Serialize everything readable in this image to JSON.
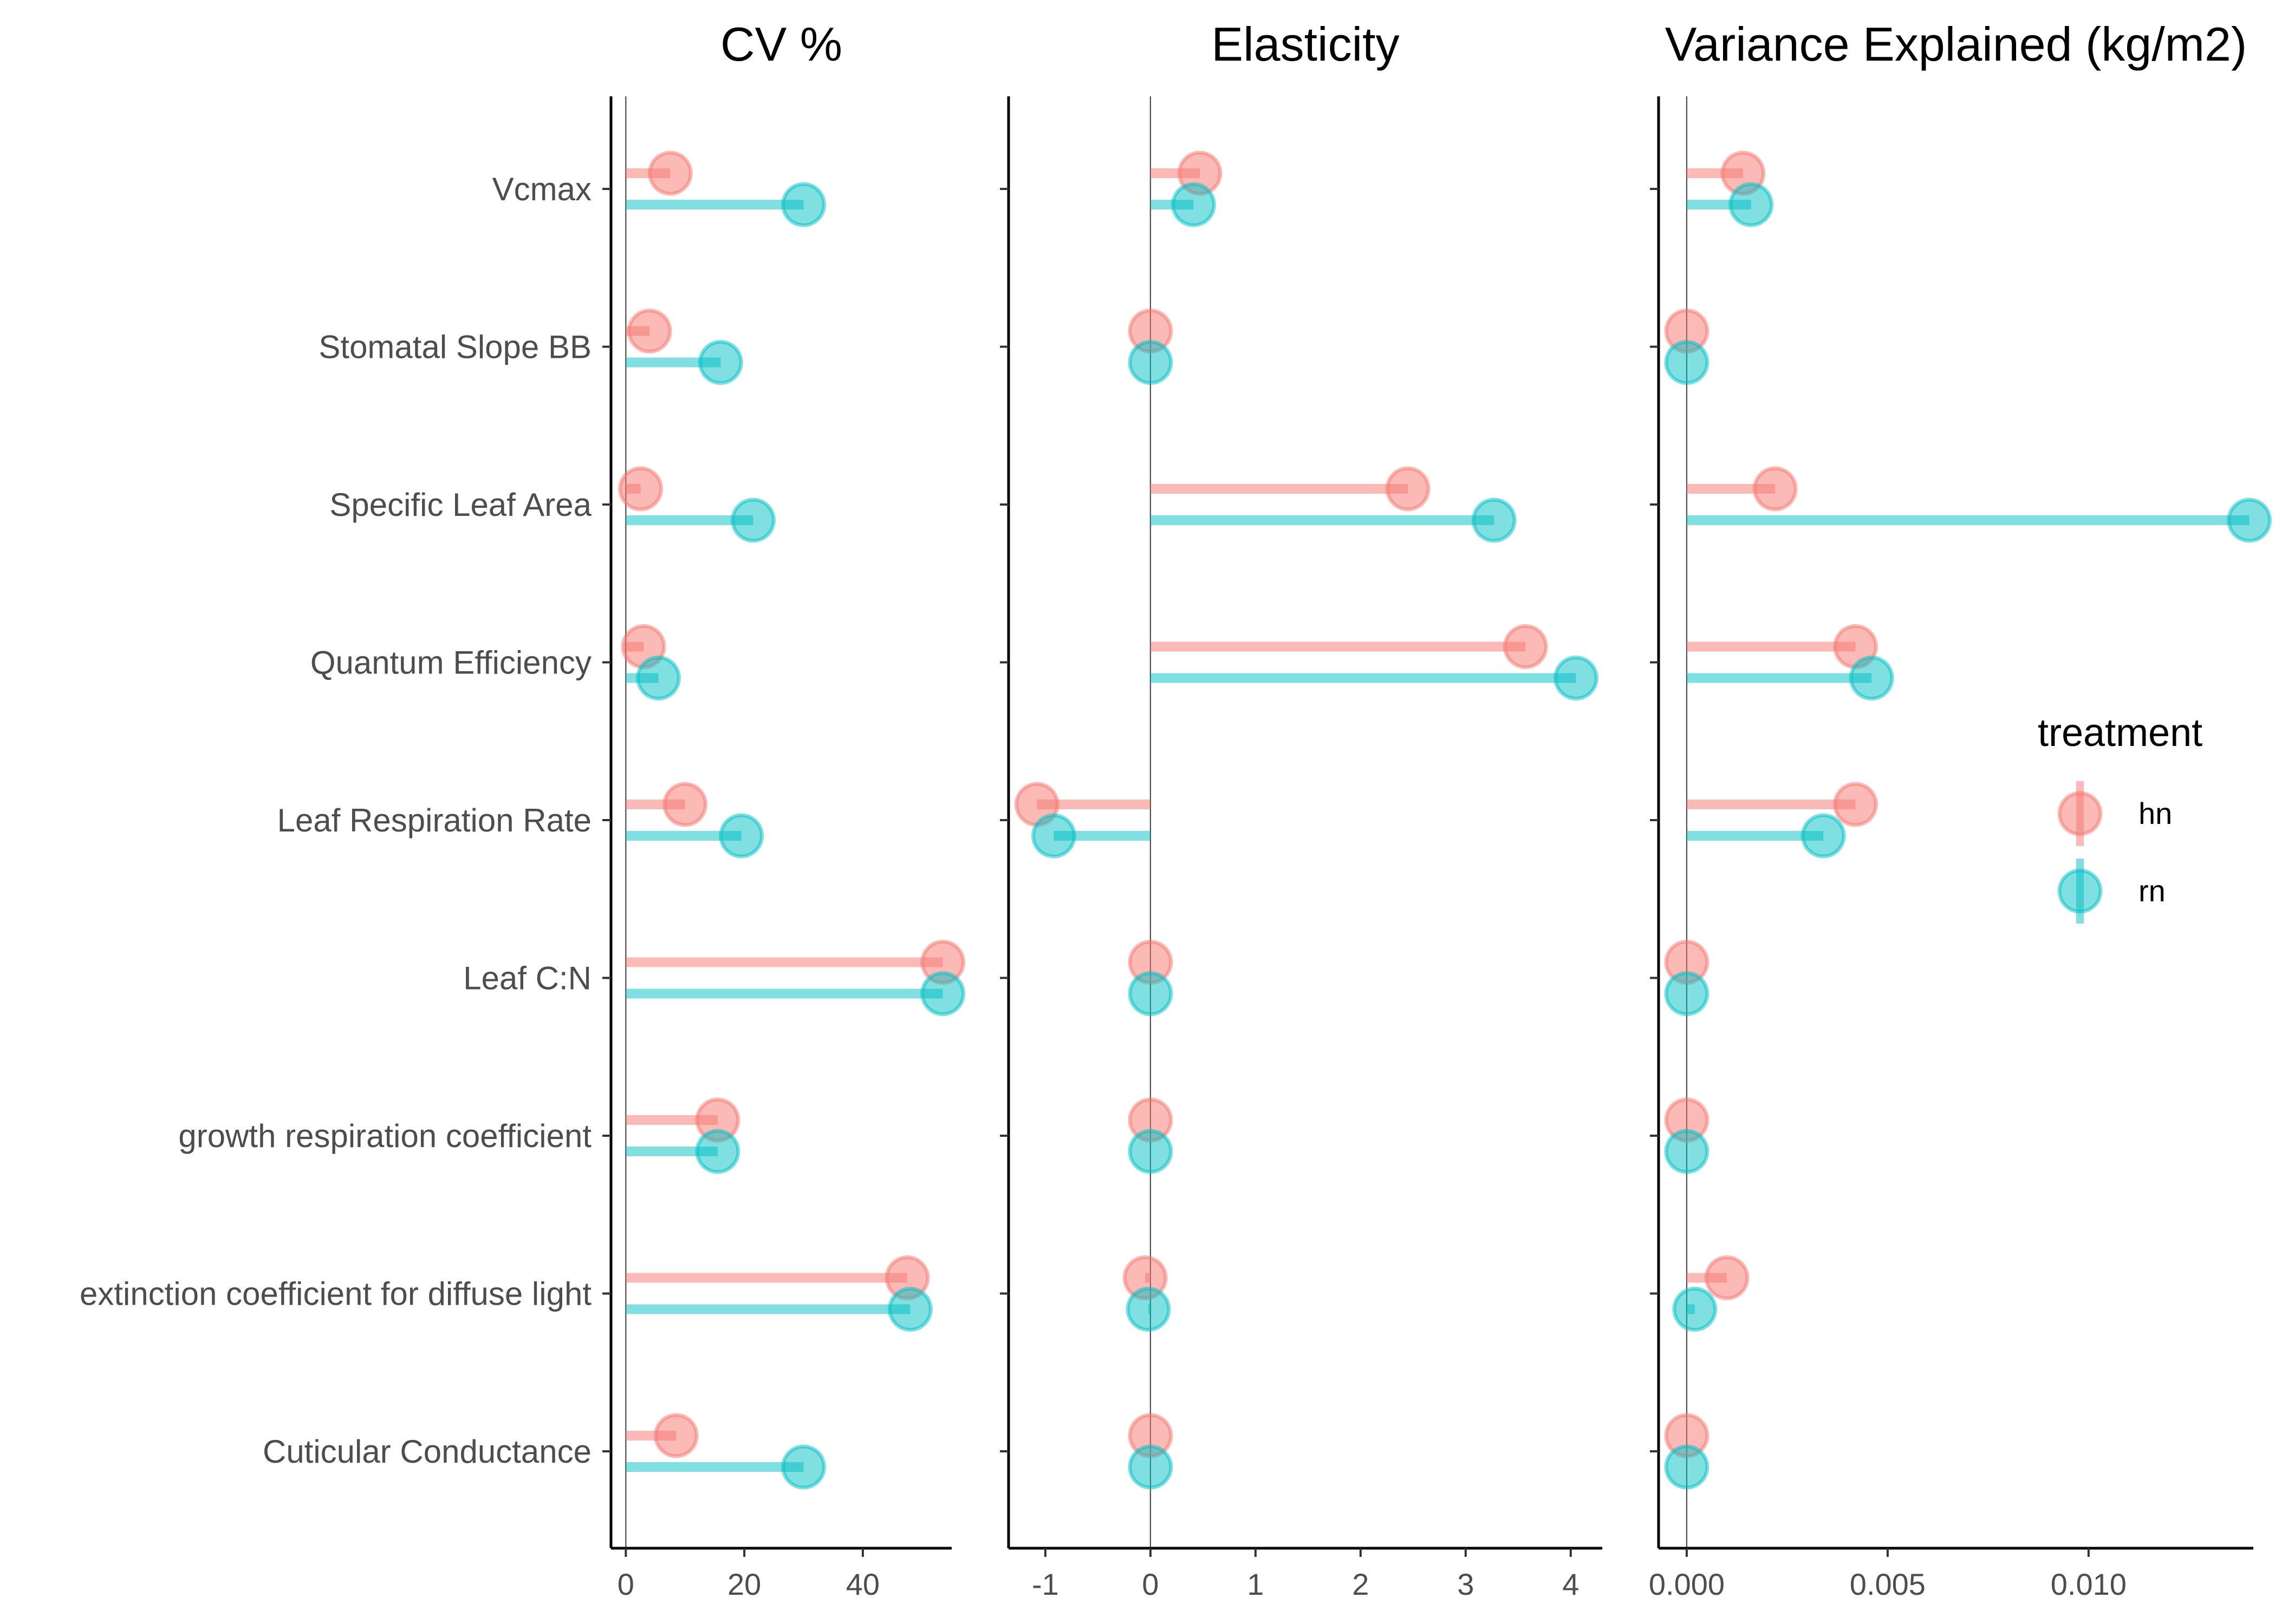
{
  "chart_data": {
    "type": "lollipop",
    "categories": [
      "Vcmax",
      "Stomatal Slope BB",
      "Specific Leaf Area",
      "Quantum Efficiency",
      "Leaf Respiration Rate",
      "Leaf C:N",
      "growth respiration coefficient",
      "extinction coefficient for diffuse light",
      "Cuticular Conductance"
    ],
    "legend": {
      "title": "treatment",
      "position": "right",
      "items": [
        {
          "name": "hn",
          "color": "#F8766D"
        },
        {
          "name": "rn",
          "color": "#00BFC4"
        }
      ]
    },
    "grid": false,
    "panels": [
      {
        "title": "CV %",
        "xlim": [
          -2.5,
          55
        ],
        "xticks": [
          0,
          20,
          40
        ],
        "xtick_labels": [
          "0",
          "20",
          "40"
        ],
        "series": [
          {
            "name": "hn",
            "values": [
              7.5,
              4,
              2.5,
              3,
              10,
              53.5,
              15.5,
              47.5,
              8.5
            ]
          },
          {
            "name": "rn",
            "values": [
              30,
              16,
              21.5,
              5.5,
              19.5,
              53.5,
              15.5,
              48,
              30
            ]
          }
        ]
      },
      {
        "title": "Elasticity",
        "xlim": [
          -1.35,
          4.3
        ],
        "xticks": [
          -1,
          0,
          1,
          2,
          3,
          4
        ],
        "xtick_labels": [
          "-1",
          "0",
          "1",
          "2",
          "3",
          "4"
        ],
        "series": [
          {
            "name": "hn",
            "values": [
              0.47,
              0.0,
              2.45,
              3.57,
              -1.08,
              0.0,
              0.0,
              -0.05,
              0.0
            ]
          },
          {
            "name": "rn",
            "values": [
              0.41,
              0.0,
              3.27,
              4.05,
              -0.92,
              0.0,
              0.0,
              -0.02,
              0.0
            ]
          }
        ]
      },
      {
        "title": "Variance Explained (kg/m2)",
        "xlim": [
          -0.0007,
          0.0141
        ],
        "xticks": [
          0,
          0.005,
          0.01
        ],
        "xtick_labels": [
          "0.000",
          "0.005",
          "0.010"
        ],
        "series": [
          {
            "name": "hn",
            "values": [
              0.0014,
              0.0,
              0.0022,
              0.0042,
              0.0042,
              0.0,
              0.0,
              0.001,
              0.0
            ]
          },
          {
            "name": "rn",
            "values": [
              0.0016,
              0.0,
              0.014,
              0.0046,
              0.0034,
              0.0,
              0.0,
              0.0002,
              0.0
            ]
          }
        ]
      }
    ]
  }
}
